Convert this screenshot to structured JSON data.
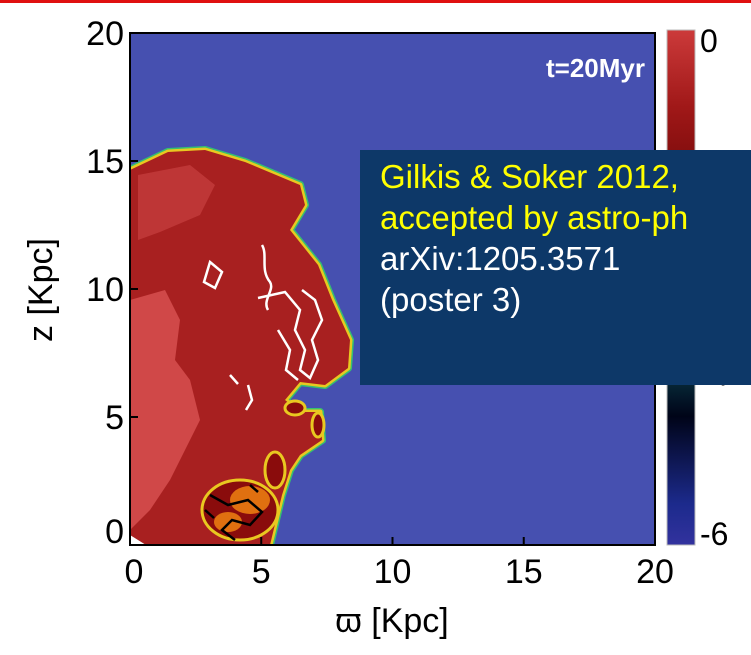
{
  "chart_data": {
    "type": "heatmap",
    "time_label": "t=20Myr",
    "xlabel": "ϖ [Kpc]",
    "ylabel": "z [Kpc]",
    "xlim": [
      0,
      20
    ],
    "ylim": [
      0,
      20
    ],
    "x_ticks": [
      "0",
      "5",
      "10",
      "15",
      "20"
    ],
    "y_ticks": [
      "0",
      "5",
      "10",
      "15",
      "20"
    ],
    "colorbar": {
      "range": [
        -6,
        0
      ],
      "tick_labels": [
        "0",
        "-4",
        "-6"
      ],
      "colors": [
        "#32329e",
        "#1c2a8c",
        "#000418",
        "#0b3f4b",
        "#0fe4e4",
        "#b3f7f7",
        "#5e0000",
        "#a01818",
        "#cc3a3a"
      ]
    },
    "colors": {
      "background_gas": "#4650b0",
      "bubble": "#a82020",
      "bubble_light": "#d04848",
      "rim": "#e9c820",
      "rim_outer": "#36c070",
      "contour_white": "#ffffff",
      "contour_black": "#000000"
    }
  },
  "annotation": {
    "lines": [
      {
        "text": "Gilkis & Soker 2012,",
        "color": "#ffff00"
      },
      {
        "text": "accepted by astro-ph",
        "color": "#ffff00"
      },
      {
        "text": "arXiv:1205.3571",
        "color": "#ffffff"
      },
      {
        "text": "(poster 3)",
        "color": "#ffffff"
      }
    ],
    "background": "#0d3868"
  },
  "header_rule_color": "#e01010"
}
